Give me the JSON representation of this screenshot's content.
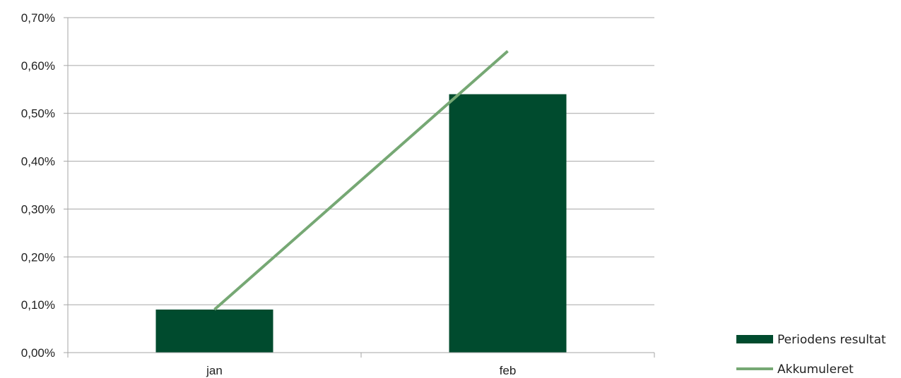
{
  "chart_data": {
    "type": "bar",
    "title": "",
    "xlabel": "",
    "ylabel": "",
    "categories": [
      "jan",
      "feb"
    ],
    "ylim": [
      0,
      0.7
    ],
    "yticks": [
      0.0,
      0.1,
      0.2,
      0.3,
      0.4,
      0.5,
      0.6,
      0.7
    ],
    "ytick_labels": [
      "0,00%",
      "0,10%",
      "0,20%",
      "0,30%",
      "0,40%",
      "0,50%",
      "0,60%",
      "0,70%"
    ],
    "grid": true,
    "legend_position": "bottom-right",
    "series": [
      {
        "name": "Periodens resultat",
        "kind": "bar",
        "color": "#004b2e",
        "values": [
          0.09,
          0.54
        ]
      },
      {
        "name": "Akkumuleret",
        "kind": "line",
        "color": "#76a874",
        "values": [
          0.09,
          0.63
        ]
      }
    ]
  }
}
